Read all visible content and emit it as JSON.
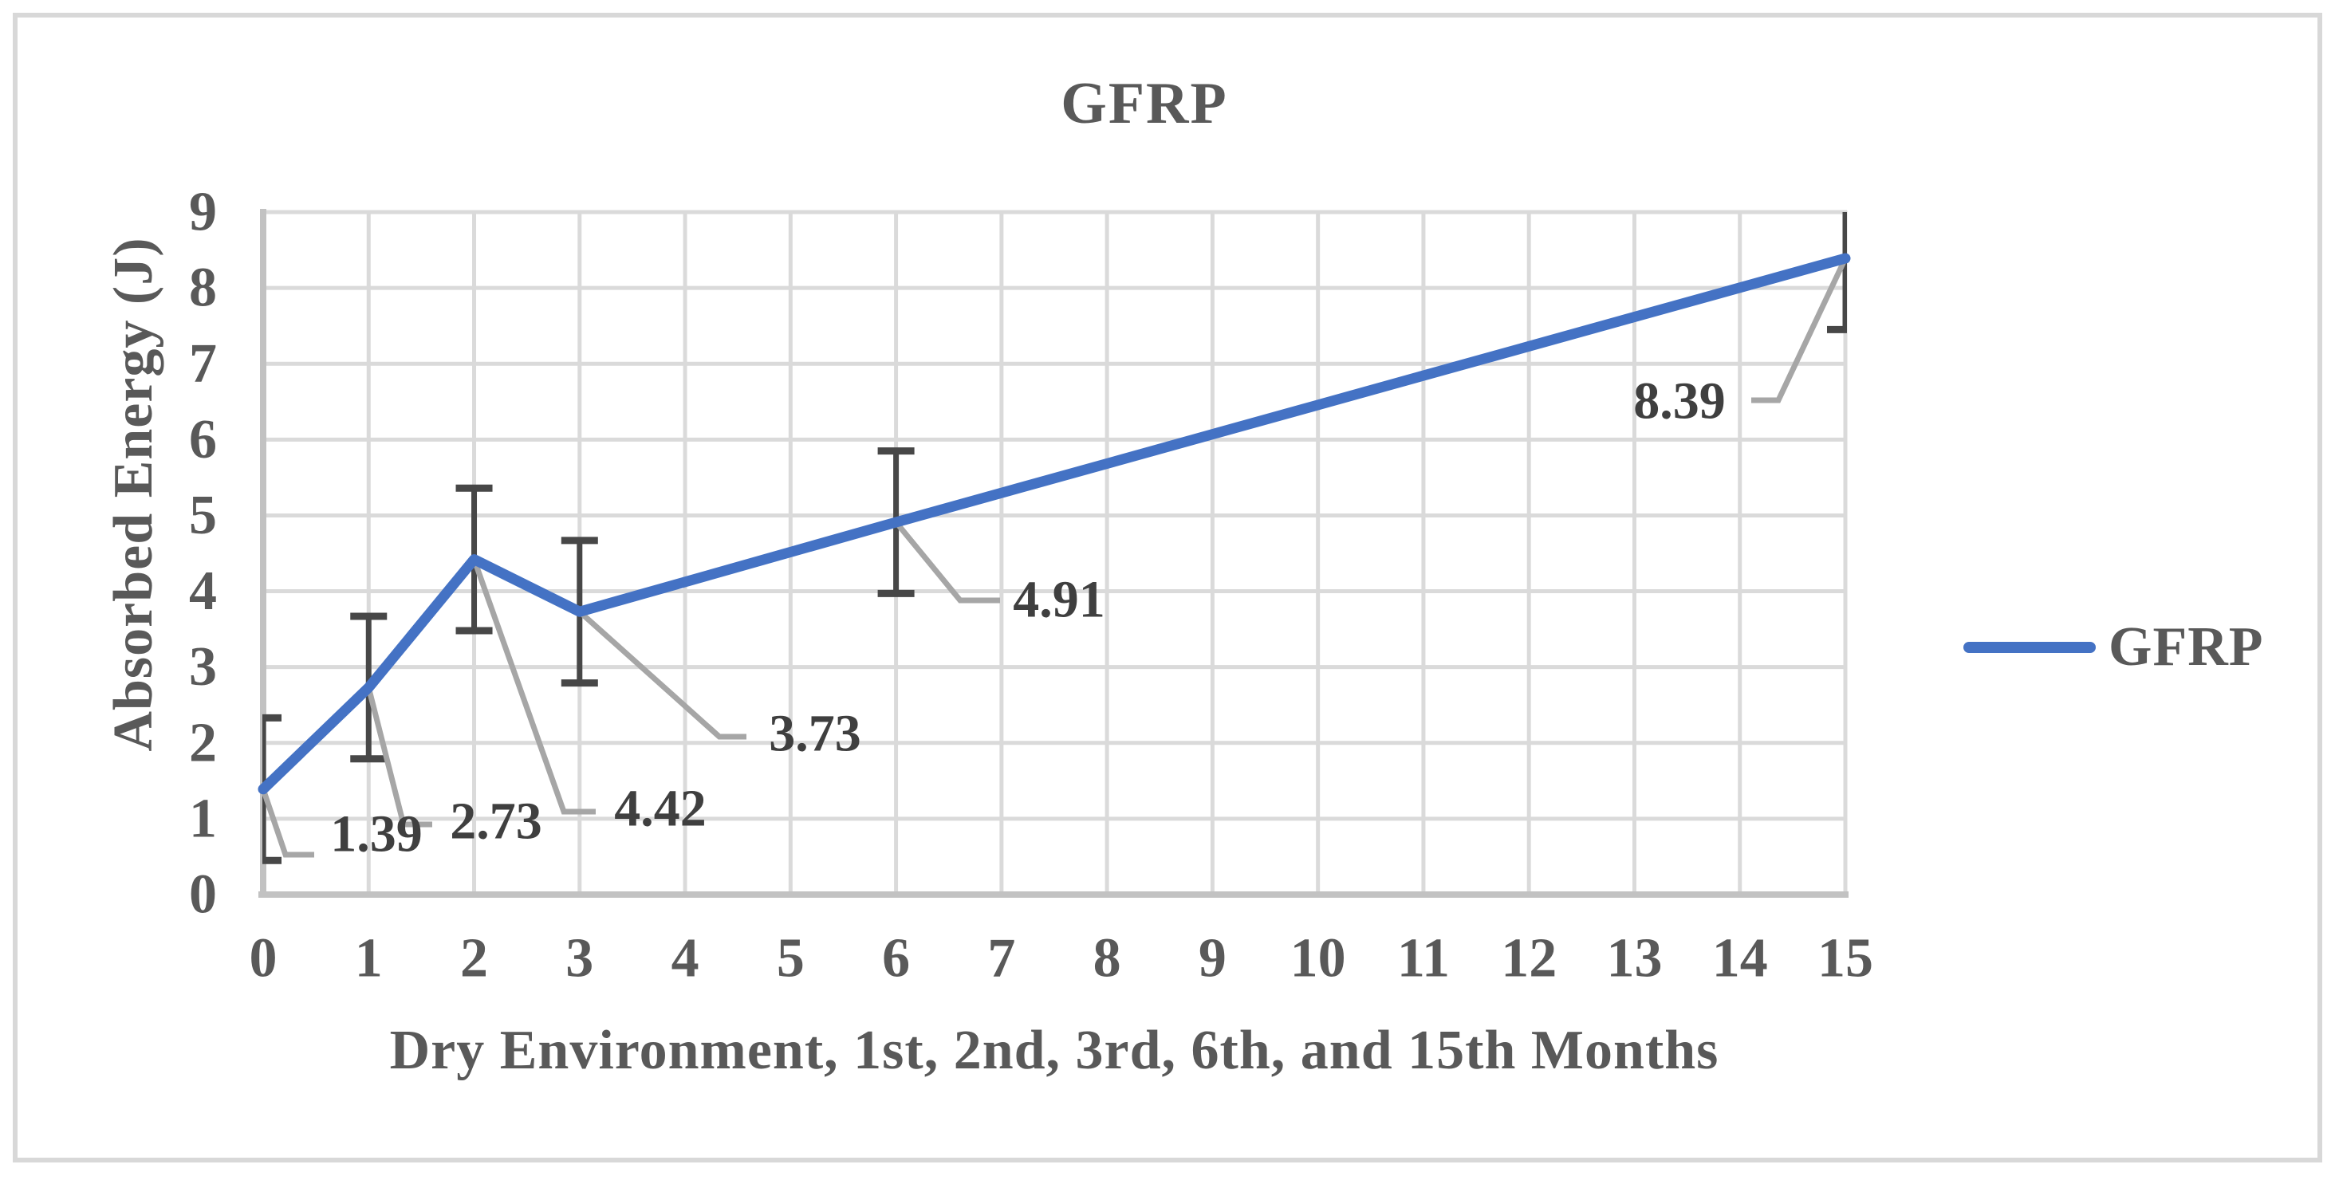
{
  "chart_data": {
    "type": "line",
    "title": "GFRP",
    "xlabel": "Dry Environment, 1st, 2nd, 3rd, 6th, and 15th Months",
    "ylabel": "Absorbed Energy (J)",
    "xlim": [
      0,
      15
    ],
    "ylim": [
      0,
      9
    ],
    "x_ticks": [
      "0",
      "1",
      "2",
      "3",
      "4",
      "5",
      "6",
      "7",
      "8",
      "9",
      "10",
      "11",
      "12",
      "13",
      "14",
      "15"
    ],
    "y_ticks": [
      "0",
      "1",
      "2",
      "3",
      "4",
      "5",
      "6",
      "7",
      "8",
      "9"
    ],
    "grid": true,
    "legend_position": "right-middle",
    "series": [
      {
        "name": "GFRP",
        "x": [
          0,
          1,
          2,
          3,
          6,
          15
        ],
        "y": [
          1.39,
          2.73,
          4.42,
          3.73,
          4.91,
          8.39
        ],
        "error_y": 0.94,
        "data_labels": [
          "1.39",
          "2.73",
          "4.42",
          "3.73",
          "4.91",
          "8.39"
        ],
        "color": "#4472C4"
      }
    ],
    "colors": {
      "series_blue": "#4472C4",
      "gridline": "#dadada",
      "axis_line": "#c2c2c2",
      "axis_text": "#595959",
      "data_label_text": "#3f3f3f",
      "error_bar": "#474747",
      "leader_line": "#a6a6a6",
      "border": "#d8d8d8"
    }
  }
}
